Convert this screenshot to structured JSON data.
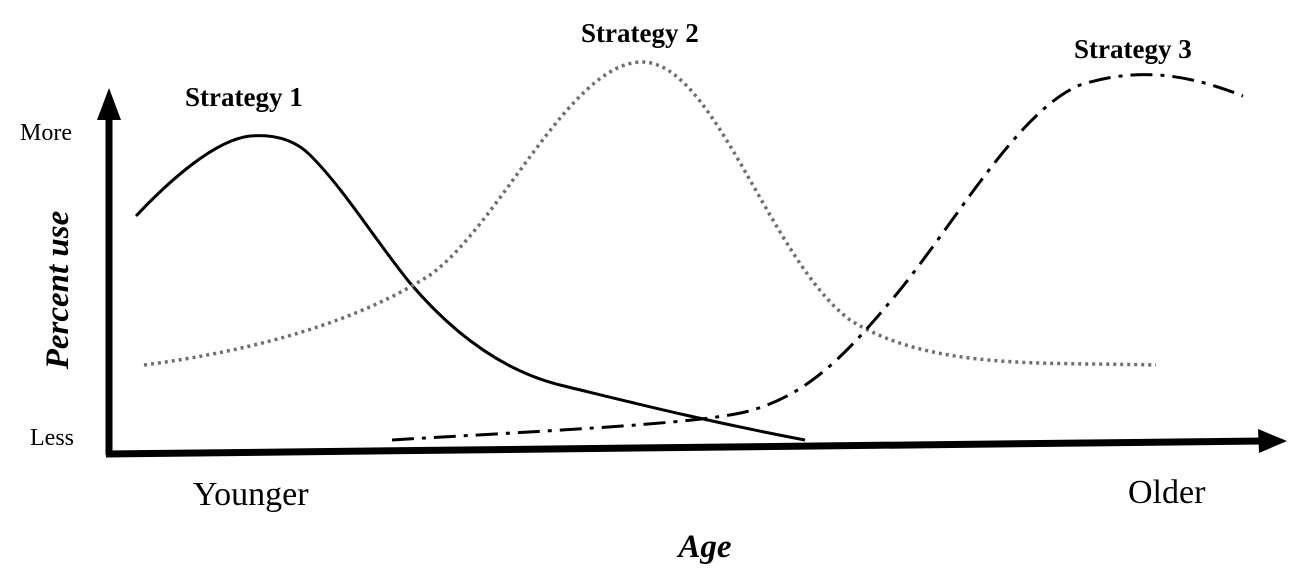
{
  "y_axis": {
    "title": "Percent use",
    "top_label": "More",
    "bottom_label": "Less"
  },
  "x_axis": {
    "title": "Age",
    "left_label": "Younger",
    "right_label": "Older"
  },
  "series": [
    {
      "name": "Strategy 1",
      "line_style": "solid",
      "color": "#000000"
    },
    {
      "name": "Strategy 2",
      "line_style": "dotted",
      "color": "#6f6f6f"
    },
    {
      "name": "Strategy 3",
      "line_style": "dash-dot",
      "color": "#000000"
    }
  ]
}
